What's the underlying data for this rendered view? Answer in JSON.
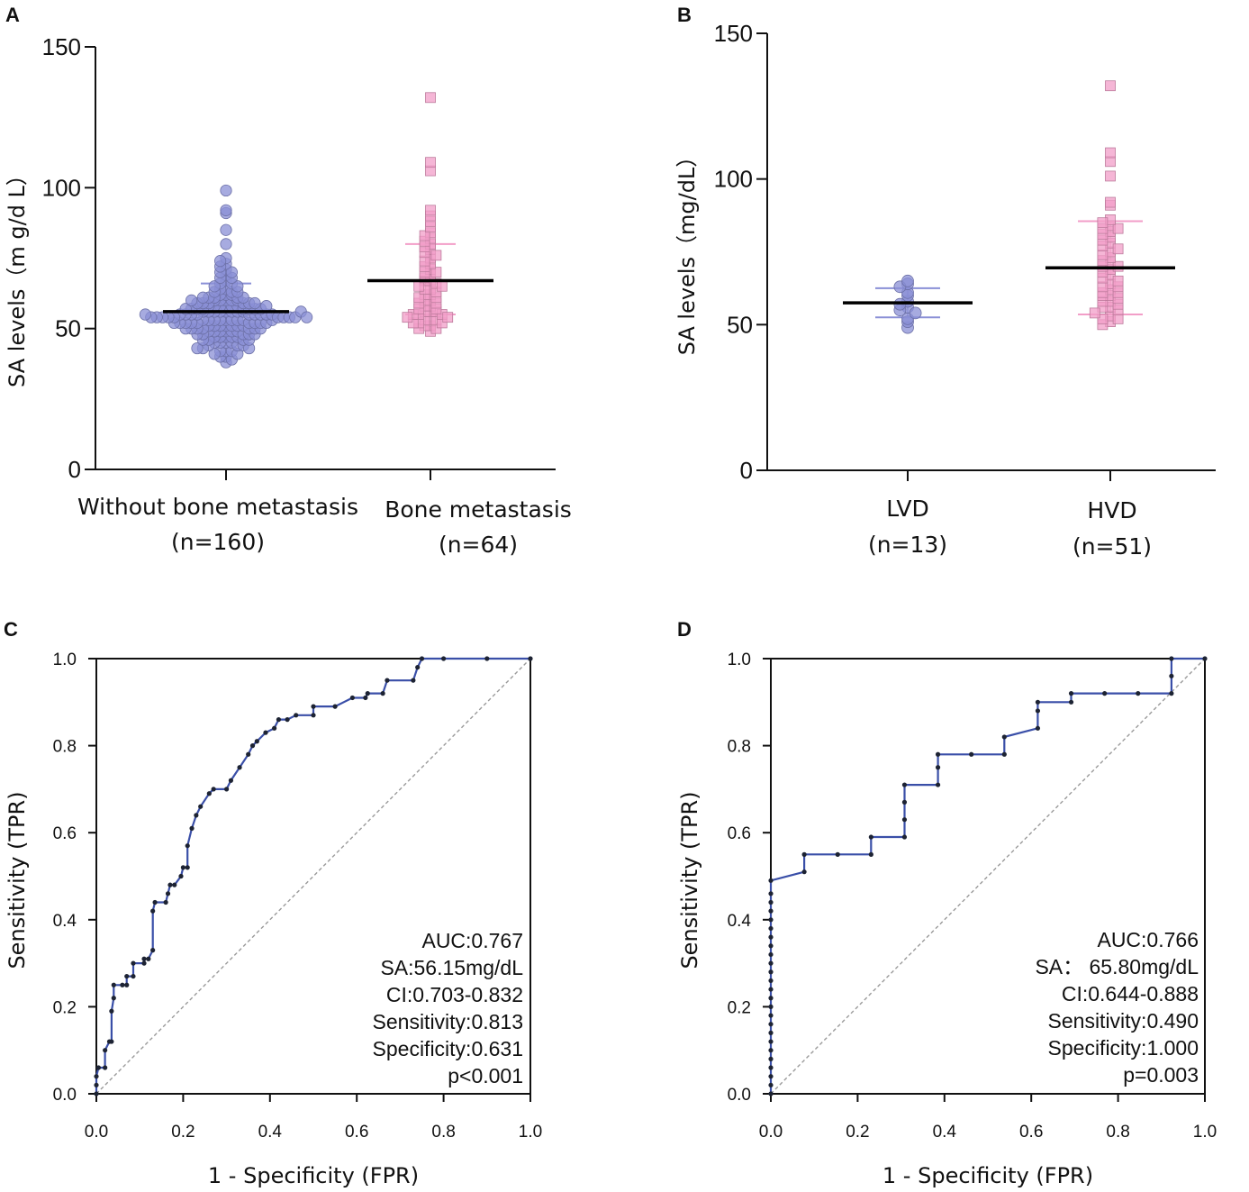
{
  "chart_data": [
    {
      "panel": "A",
      "type": "scatter",
      "ylabel": "SA levels（m g/d L）",
      "ylim": [
        0,
        150
      ],
      "yticks": [
        0,
        50,
        100,
        150
      ],
      "categories": [
        {
          "name": "Without bone metastasis",
          "n_label": "(n=160)",
          "n": 160,
          "mean": 56,
          "sd_upper": 66,
          "sd_lower": 46,
          "color": "#8a8fd6",
          "marker": "circle"
        },
        {
          "name": "Bone metastasis",
          "n_label": "(n=64)",
          "n": 64,
          "mean": 67,
          "sd_upper": 80,
          "sd_lower": 55,
          "color": "#f29ec8",
          "marker": "square"
        }
      ],
      "points": [
        [
          99,
          92,
          91,
          85,
          80,
          75,
          74,
          73,
          72,
          71,
          70,
          70,
          69,
          68,
          68,
          67,
          66,
          66,
          65,
          65,
          64,
          64,
          63,
          63,
          63,
          62,
          62,
          62,
          61,
          61,
          61,
          61,
          60,
          60,
          60,
          60,
          60,
          59,
          59,
          59,
          59,
          59,
          58,
          58,
          58,
          58,
          58,
          58,
          57,
          57,
          57,
          57,
          57,
          57,
          57,
          56,
          56,
          56,
          56,
          56,
          56,
          56,
          56,
          55,
          55,
          55,
          55,
          55,
          55,
          55,
          55,
          55,
          54,
          54,
          54,
          54,
          54,
          54,
          54,
          54,
          54,
          53,
          53,
          53,
          53,
          53,
          53,
          53,
          53,
          52,
          52,
          52,
          52,
          52,
          52,
          52,
          52,
          51,
          51,
          51,
          51,
          51,
          51,
          51,
          50,
          50,
          50,
          50,
          50,
          50,
          50,
          49,
          49,
          49,
          49,
          49,
          49,
          48,
          48,
          48,
          48,
          48,
          47,
          47,
          47,
          47,
          47,
          46,
          46,
          46,
          46,
          45,
          45,
          45,
          45,
          44,
          44,
          44,
          43,
          43,
          43,
          42,
          42,
          42,
          41,
          41,
          40,
          40,
          39,
          38,
          56,
          57,
          55,
          58,
          54,
          59,
          53,
          60,
          52,
          61
        ],
        [
          132,
          109,
          106,
          92,
          90,
          88,
          86,
          84,
          83,
          82,
          81,
          80,
          79,
          78,
          77,
          76,
          75,
          74,
          73,
          72,
          71,
          70,
          70,
          69,
          68,
          67,
          67,
          66,
          65,
          65,
          64,
          64,
          63,
          62,
          62,
          61,
          61,
          60,
          60,
          59,
          59,
          58,
          58,
          57,
          57,
          56,
          56,
          56,
          55,
          55,
          55,
          54,
          54,
          53,
          53,
          53,
          52,
          52,
          52,
          51,
          51,
          50,
          50,
          49
        ]
      ]
    },
    {
      "panel": "B",
      "type": "scatter",
      "ylabel": "SA levels（mg/dL）",
      "ylim": [
        0,
        150
      ],
      "yticks": [
        0,
        50,
        100,
        150
      ],
      "categories": [
        {
          "name": "LVD",
          "n_label": "(n=13)",
          "n": 13,
          "mean": 57.5,
          "sd_upper": 62.5,
          "sd_lower": 52.5,
          "color": "#8a8fd6",
          "marker": "circle"
        },
        {
          "name": "HVD",
          "n_label": "(n=51)",
          "n": 51,
          "mean": 69.5,
          "sd_upper": 85.5,
          "sd_lower": 53.5,
          "color": "#f29ec8",
          "marker": "square"
        }
      ],
      "points": [
        [
          65,
          64,
          63,
          61,
          60,
          58,
          57,
          56,
          55,
          54,
          52,
          51,
          49
        ],
        [
          132,
          109,
          106,
          101,
          92,
          91,
          86,
          85,
          84,
          83,
          83,
          82,
          81,
          80,
          79,
          78,
          77,
          76,
          75,
          74,
          73,
          72,
          71,
          70,
          70,
          69,
          68,
          67,
          66,
          65,
          64,
          63,
          63,
          62,
          61,
          61,
          60,
          60,
          59,
          58,
          58,
          57,
          56,
          56,
          55,
          54,
          53,
          52,
          52,
          51,
          50
        ]
      ]
    },
    {
      "panel": "C",
      "type": "line",
      "xlabel": "1 - Specificity (FPR)",
      "ylabel": "Sensitivity (TPR)",
      "xlim": [
        0,
        1
      ],
      "ylim": [
        0,
        1
      ],
      "ticks": [
        "0.0",
        "0.2",
        "0.4",
        "0.6",
        "0.8",
        "1.0"
      ],
      "roc": [
        [
          0,
          0
        ],
        [
          0,
          0.02
        ],
        [
          0,
          0.04
        ],
        [
          0.005,
          0.06
        ],
        [
          0.02,
          0.06
        ],
        [
          0.02,
          0.1
        ],
        [
          0.03,
          0.12
        ],
        [
          0.035,
          0.12
        ],
        [
          0.035,
          0.19
        ],
        [
          0.04,
          0.22
        ],
        [
          0.04,
          0.25
        ],
        [
          0.06,
          0.25
        ],
        [
          0.07,
          0.25
        ],
        [
          0.07,
          0.27
        ],
        [
          0.085,
          0.27
        ],
        [
          0.085,
          0.3
        ],
        [
          0.11,
          0.3
        ],
        [
          0.11,
          0.31
        ],
        [
          0.12,
          0.31
        ],
        [
          0.13,
          0.33
        ],
        [
          0.13,
          0.42
        ],
        [
          0.135,
          0.44
        ],
        [
          0.16,
          0.44
        ],
        [
          0.165,
          0.46
        ],
        [
          0.17,
          0.48
        ],
        [
          0.18,
          0.48
        ],
        [
          0.195,
          0.5
        ],
        [
          0.2,
          0.52
        ],
        [
          0.21,
          0.52
        ],
        [
          0.21,
          0.57
        ],
        [
          0.22,
          0.61
        ],
        [
          0.23,
          0.64
        ],
        [
          0.24,
          0.66
        ],
        [
          0.26,
          0.69
        ],
        [
          0.27,
          0.7
        ],
        [
          0.3,
          0.7
        ],
        [
          0.31,
          0.72
        ],
        [
          0.33,
          0.75
        ],
        [
          0.35,
          0.78
        ],
        [
          0.36,
          0.8
        ],
        [
          0.37,
          0.81
        ],
        [
          0.39,
          0.83
        ],
        [
          0.41,
          0.84
        ],
        [
          0.42,
          0.86
        ],
        [
          0.44,
          0.86
        ],
        [
          0.46,
          0.87
        ],
        [
          0.5,
          0.87
        ],
        [
          0.5,
          0.89
        ],
        [
          0.55,
          0.89
        ],
        [
          0.59,
          0.91
        ],
        [
          0.62,
          0.91
        ],
        [
          0.625,
          0.92
        ],
        [
          0.66,
          0.92
        ],
        [
          0.67,
          0.95
        ],
        [
          0.73,
          0.95
        ],
        [
          0.74,
          0.98
        ],
        [
          0.75,
          1.0
        ],
        [
          0.8,
          1.0
        ],
        [
          0.9,
          1.0
        ],
        [
          1.0,
          1.0
        ]
      ],
      "annotations": [
        "AUC:0.767",
        "SA:56.15mg/dL",
        "CI:0.703-0.832",
        "Sensitivity:0.813",
        "Specificity:0.631",
        "p<0.001"
      ]
    },
    {
      "panel": "D",
      "type": "line",
      "xlabel": "1 - Specificity (FPR)",
      "ylabel": "Sensitivity (TPR)",
      "xlim": [
        0,
        1
      ],
      "ylim": [
        0,
        1
      ],
      "ticks": [
        "0.0",
        "0.2",
        "0.4",
        "0.6",
        "0.8",
        "1.0"
      ],
      "roc": [
        [
          0,
          0
        ],
        [
          0,
          0.02
        ],
        [
          0,
          0.04
        ],
        [
          0,
          0.06
        ],
        [
          0,
          0.08
        ],
        [
          0,
          0.1
        ],
        [
          0,
          0.12
        ],
        [
          0,
          0.14
        ],
        [
          0,
          0.16
        ],
        [
          0,
          0.18
        ],
        [
          0,
          0.2
        ],
        [
          0,
          0.22
        ],
        [
          0,
          0.24
        ],
        [
          0,
          0.26
        ],
        [
          0,
          0.28
        ],
        [
          0,
          0.3
        ],
        [
          0,
          0.32
        ],
        [
          0,
          0.34
        ],
        [
          0,
          0.36
        ],
        [
          0,
          0.38
        ],
        [
          0,
          0.4
        ],
        [
          0,
          0.42
        ],
        [
          0,
          0.44
        ],
        [
          0,
          0.46
        ],
        [
          0,
          0.49
        ],
        [
          0.077,
          0.51
        ],
        [
          0.077,
          0.55
        ],
        [
          0.154,
          0.55
        ],
        [
          0.231,
          0.55
        ],
        [
          0.231,
          0.59
        ],
        [
          0.308,
          0.59
        ],
        [
          0.308,
          0.63
        ],
        [
          0.308,
          0.67
        ],
        [
          0.308,
          0.71
        ],
        [
          0.385,
          0.71
        ],
        [
          0.385,
          0.75
        ],
        [
          0.385,
          0.78
        ],
        [
          0.462,
          0.78
        ],
        [
          0.538,
          0.78
        ],
        [
          0.538,
          0.82
        ],
        [
          0.615,
          0.84
        ],
        [
          0.615,
          0.88
        ],
        [
          0.615,
          0.9
        ],
        [
          0.692,
          0.9
        ],
        [
          0.692,
          0.92
        ],
        [
          0.769,
          0.92
        ],
        [
          0.846,
          0.92
        ],
        [
          0.923,
          0.92
        ],
        [
          0.923,
          0.96
        ],
        [
          0.923,
          1.0
        ],
        [
          1.0,
          1.0
        ]
      ],
      "annotations": [
        "AUC:0.766",
        "SA：  65.80mg/dL",
        "CI:0.644-0.888",
        "Sensitivity:0.490",
        "Specificity:1.000",
        "p=0.003"
      ]
    }
  ]
}
